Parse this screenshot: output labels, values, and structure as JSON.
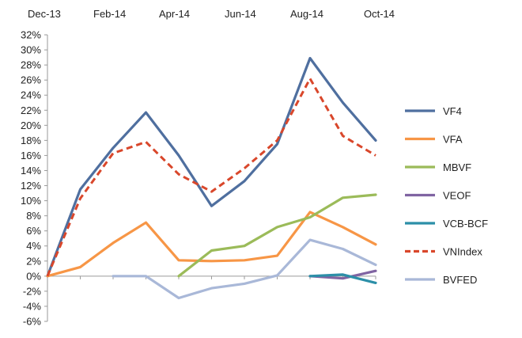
{
  "chart_data": {
    "type": "line",
    "title": "",
    "xlabel": "",
    "ylabel": "",
    "x_tick_labels": [
      "Dec-13",
      "Feb-14",
      "Apr-14",
      "Jun-14",
      "Aug-14",
      "Oct-14"
    ],
    "y_tick_labels": [
      "32%",
      "30%",
      "28%",
      "26%",
      "24%",
      "22%",
      "20%",
      "18%",
      "16%",
      "14%",
      "12%",
      "10%",
      "8%",
      "6%",
      "4%",
      "2%",
      "0%",
      "-2%",
      "-4%",
      "-6%"
    ],
    "ylim": [
      -6,
      32
    ],
    "x_index_range": [
      0,
      10
    ],
    "grid": false,
    "legend_position": "right",
    "series": [
      {
        "name": "VF4",
        "color": "#4f6f9f",
        "dash": "solid",
        "x": [
          0,
          1,
          2,
          3,
          4,
          5,
          6,
          7,
          8,
          9,
          10
        ],
        "values": [
          0,
          11.5,
          17,
          21.7,
          16,
          9.3,
          12.6,
          17.5,
          28.9,
          23,
          18
        ]
      },
      {
        "name": "VFA",
        "color": "#f79646",
        "dash": "solid",
        "x": [
          0,
          1,
          2,
          3,
          4,
          5,
          6,
          7,
          8,
          9,
          10
        ],
        "values": [
          0,
          1.2,
          4.4,
          7.1,
          2.1,
          2,
          2.1,
          2.7,
          8.5,
          6.5,
          4.2
        ]
      },
      {
        "name": "MBVF",
        "color": "#9bbb59",
        "dash": "solid",
        "x": [
          4,
          5,
          6,
          7,
          8,
          9,
          10
        ],
        "values": [
          0,
          3.4,
          4,
          6.5,
          7.8,
          10.4,
          10.8
        ]
      },
      {
        "name": "VEOF",
        "color": "#8064a2",
        "dash": "solid",
        "x": [
          8,
          9,
          10
        ],
        "values": [
          0,
          -0.3,
          0.7
        ]
      },
      {
        "name": "VCB-BCF",
        "color": "#2c8fa8",
        "dash": "solid",
        "x": [
          8,
          9,
          10
        ],
        "values": [
          0,
          0.2,
          -0.9
        ]
      },
      {
        "name": "VNIndex",
        "color": "#d9472b",
        "dash": "dashed",
        "x": [
          0,
          1,
          2,
          3,
          4,
          5,
          6,
          7,
          8,
          9,
          10
        ],
        "values": [
          0,
          10.3,
          16.3,
          17.8,
          13.5,
          11.2,
          14.3,
          18,
          26.2,
          18.6,
          16
        ]
      },
      {
        "name": "BVFED",
        "color": "#a9b8d8",
        "dash": "solid",
        "x": [
          2,
          3,
          4,
          5,
          6,
          7,
          8,
          9,
          10
        ],
        "values": [
          0,
          0,
          -2.9,
          -1.6,
          -1,
          0.1,
          4.8,
          3.6,
          1.5
        ]
      }
    ]
  }
}
